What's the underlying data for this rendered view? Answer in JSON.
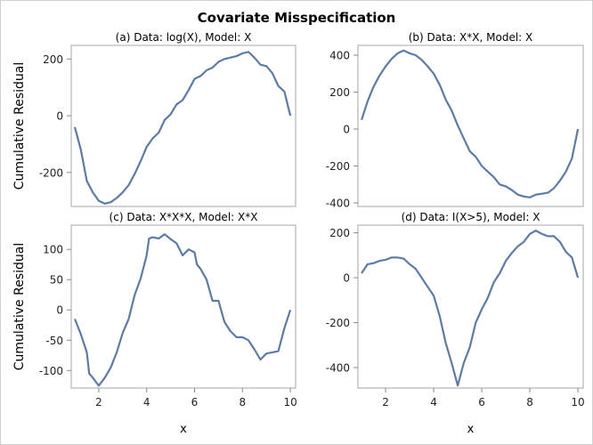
{
  "title": "Covariate Misspecification",
  "line_color": "#5a7bab",
  "chart_data": [
    {
      "type": "line",
      "title": "(a) Data: log(X), Model: X",
      "xlabel": "",
      "ylabel": "Cumulative Residual",
      "xlim": [
        0.85,
        10.22
      ],
      "ylim": [
        -320,
        248
      ],
      "xticks": [],
      "yticks": [
        -200,
        0,
        200
      ],
      "grid": false,
      "x": [
        1,
        1.25,
        1.5,
        1.75,
        2,
        2.25,
        2.5,
        2.75,
        3,
        3.25,
        3.5,
        3.75,
        4,
        4.25,
        4.5,
        4.75,
        5,
        5.25,
        5.5,
        5.75,
        6,
        6.25,
        6.5,
        6.75,
        7,
        7.25,
        7.5,
        7.75,
        8,
        8.25,
        8.5,
        8.75,
        9,
        9.25,
        9.5,
        9.75,
        10
      ],
      "y": [
        -40,
        -120,
        -230,
        -270,
        -300,
        -310,
        -305,
        -290,
        -270,
        -245,
        -205,
        -160,
        -110,
        -80,
        -60,
        -15,
        5,
        40,
        55,
        90,
        130,
        140,
        160,
        170,
        190,
        200,
        205,
        210,
        220,
        225,
        205,
        180,
        175,
        150,
        105,
        85,
        0
      ]
    },
    {
      "type": "line",
      "title": "(b) Data: X*X, Model: X",
      "xlabel": "",
      "ylabel": "",
      "xlim": [
        0.85,
        10.22
      ],
      "ylim": [
        -419,
        453
      ],
      "xticks": [],
      "yticks": [
        -400,
        -200,
        0,
        200,
        400
      ],
      "grid": false,
      "x": [
        1,
        1.25,
        1.5,
        1.75,
        2,
        2.25,
        2.5,
        2.75,
        3,
        3.25,
        3.5,
        3.75,
        4,
        4.25,
        4.5,
        4.75,
        5,
        5.25,
        5.5,
        5.75,
        6,
        6.25,
        6.5,
        6.75,
        7,
        7.25,
        7.5,
        7.75,
        8,
        8.25,
        8.5,
        8.75,
        9,
        9.25,
        9.5,
        9.75,
        10
      ],
      "y": [
        50,
        150,
        230,
        290,
        340,
        380,
        410,
        425,
        410,
        400,
        375,
        340,
        300,
        240,
        160,
        100,
        20,
        -50,
        -120,
        -150,
        -200,
        -230,
        -260,
        -300,
        -310,
        -330,
        -355,
        -365,
        -370,
        -355,
        -350,
        -345,
        -320,
        -280,
        -230,
        -160,
        0
      ]
    },
    {
      "type": "line",
      "title": "(c) Data: X*X*X, Model: X*X",
      "xlabel": "x",
      "ylabel": "Cumulative Residual",
      "xlim": [
        0.85,
        10.22
      ],
      "ylim": [
        -129,
        140
      ],
      "xticks": [
        2,
        4,
        6,
        8,
        10
      ],
      "yticks": [
        -100,
        -50,
        0,
        50,
        100
      ],
      "grid": false,
      "x": [
        1,
        1.25,
        1.5,
        1.6,
        1.75,
        2,
        2.25,
        2.5,
        2.75,
        3,
        3.25,
        3.5,
        3.75,
        4,
        4.1,
        4.25,
        4.5,
        4.75,
        5,
        5.25,
        5.5,
        5.75,
        6,
        6.1,
        6.25,
        6.5,
        6.75,
        7,
        7.25,
        7.5,
        7.75,
        8,
        8.25,
        8.5,
        8.75,
        9,
        9.25,
        9.5,
        9.75,
        10
      ],
      "y": [
        -15,
        -40,
        -70,
        -105,
        -112,
        -125,
        -112,
        -95,
        -70,
        -38,
        -15,
        25,
        52,
        90,
        118,
        120,
        118,
        125,
        117,
        110,
        90,
        100,
        95,
        75,
        68,
        50,
        15,
        15,
        -20,
        -35,
        -45,
        -45,
        -50,
        -65,
        -82,
        -72,
        -70,
        -68,
        -30,
        0
      ]
    },
    {
      "type": "line",
      "title": "(d) Data: I(X>5), Model: X",
      "xlabel": "x",
      "ylabel": "",
      "xlim": [
        0.85,
        10.22
      ],
      "ylim": [
        -491,
        234
      ],
      "xticks": [
        2,
        4,
        6,
        8,
        10
      ],
      "yticks": [
        -400,
        -200,
        0,
        200
      ],
      "grid": false,
      "x": [
        1,
        1.25,
        1.5,
        1.75,
        2,
        2.25,
        2.5,
        2.75,
        3,
        3.25,
        3.5,
        3.75,
        4,
        4.25,
        4.5,
        4.75,
        5,
        5.25,
        5.5,
        5.75,
        6,
        6.25,
        6.5,
        6.75,
        7,
        7.25,
        7.5,
        7.75,
        8,
        8.25,
        8.5,
        8.75,
        9,
        9.25,
        9.5,
        9.75,
        10
      ],
      "y": [
        20,
        60,
        65,
        75,
        80,
        90,
        90,
        85,
        60,
        40,
        0,
        -40,
        -80,
        -170,
        -290,
        -380,
        -480,
        -380,
        -310,
        -200,
        -140,
        -90,
        -20,
        20,
        75,
        110,
        140,
        160,
        195,
        210,
        195,
        185,
        185,
        160,
        115,
        90,
        0
      ]
    }
  ]
}
